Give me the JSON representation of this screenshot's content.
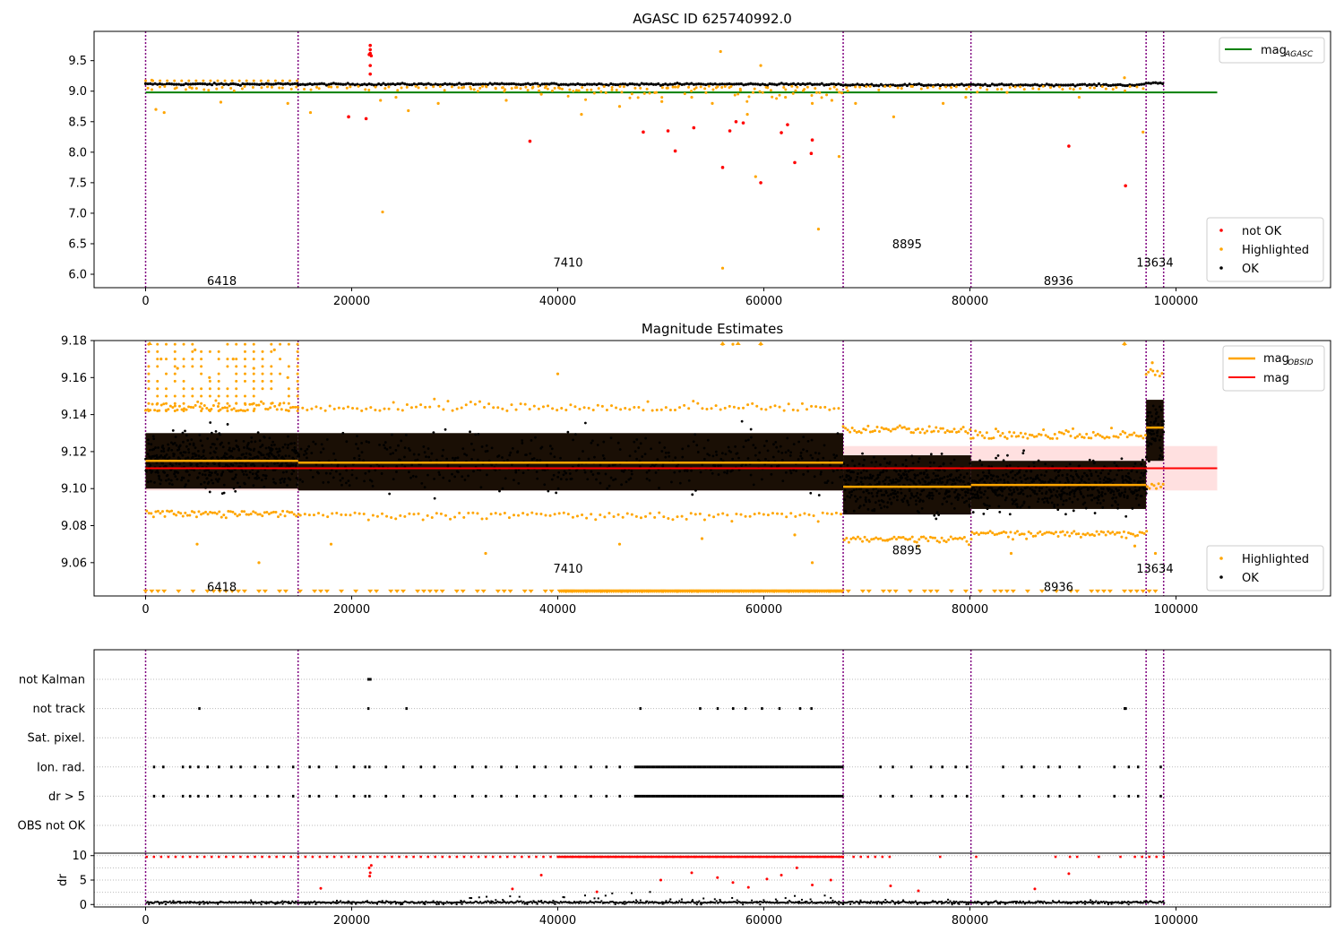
{
  "figure": {
    "title": "AGASC ID 625740992.0",
    "obsid_boundaries": [
      0,
      14800,
      67700,
      80100,
      97100,
      98800
    ],
    "obsids": [
      {
        "label": "6418",
        "x_center": 7400
      },
      {
        "label": "7410",
        "x_center": 41000
      },
      {
        "label": "8895",
        "x_center": 73900
      },
      {
        "label": "8936",
        "x_center": 88600
      },
      {
        "label": "13634",
        "x_center": 97950
      }
    ],
    "colors": {
      "ok": "#000000",
      "highlighted": "#ffa500",
      "not_ok": "#ff0000",
      "agasc_line": "#008000",
      "mean_line": "#ff0000",
      "obsid_line": "#ffa500",
      "boundary": "#800080",
      "band": "#ffe0e0"
    }
  },
  "chart_data": [
    {
      "id": "top",
      "type": "scatter",
      "title": "AGASC ID 625740992.0",
      "xlabel": "",
      "ylabel": "",
      "xlim": [
        -5000,
        115000
      ],
      "ylim": [
        5.78,
        9.98
      ],
      "xticks": [
        0,
        20000,
        40000,
        60000,
        80000,
        100000
      ],
      "yticks": [
        6.0,
        6.5,
        7.0,
        7.5,
        8.0,
        8.5,
        9.0,
        9.5
      ],
      "ytick_labels": [
        "6.0",
        "6.5",
        "7.0",
        "7.5",
        "8.0",
        "8.5",
        "9.0",
        "9.5"
      ],
      "legend_upper": {
        "placement": "top-right",
        "entries": [
          {
            "label": "mag",
            "sub": "AGASC"
          }
        ]
      },
      "legend_lower": {
        "placement": "bottom-right",
        "entries": [
          "not OK",
          "Highlighted",
          "OK"
        ]
      },
      "mag_agasc": 8.98,
      "obsid_label_y": [
        5.9,
        6.2,
        6.5,
        5.9,
        6.2
      ],
      "ok_band": [
        {
          "x0": 0,
          "x1": 14800,
          "y": 9.115
        },
        {
          "x0": 14800,
          "x1": 67700,
          "y": 9.114
        },
        {
          "x0": 67700,
          "x1": 80100,
          "y": 9.101
        },
        {
          "x0": 80100,
          "x1": 97100,
          "y": 9.102
        },
        {
          "x0": 97100,
          "x1": 98800,
          "y": 9.133
        }
      ],
      "highlighted_points": [
        [
          600,
          9.18
        ],
        [
          1000,
          8.7
        ],
        [
          1800,
          8.65
        ],
        [
          4500,
          9.05
        ],
        [
          7300,
          8.82
        ],
        [
          13800,
          8.8
        ],
        [
          16000,
          8.65
        ],
        [
          22800,
          8.85
        ],
        [
          23000,
          7.02
        ],
        [
          24300,
          8.9
        ],
        [
          25500,
          8.68
        ],
        [
          28400,
          8.8
        ],
        [
          35000,
          8.85
        ],
        [
          38400,
          8.95
        ],
        [
          42300,
          8.62
        ],
        [
          46000,
          8.75
        ],
        [
          50100,
          8.83
        ],
        [
          53000,
          8.9
        ],
        [
          55000,
          8.8
        ],
        [
          55800,
          9.65
        ],
        [
          56000,
          6.1
        ],
        [
          58400,
          8.62
        ],
        [
          59700,
          9.42
        ],
        [
          59200,
          7.6
        ],
        [
          62100,
          8.9
        ],
        [
          64700,
          8.8
        ],
        [
          65300,
          6.74
        ],
        [
          66600,
          8.85
        ],
        [
          67300,
          7.93
        ],
        [
          68900,
          8.8
        ],
        [
          72600,
          8.58
        ],
        [
          77400,
          8.8
        ],
        [
          79600,
          8.9
        ],
        [
          83600,
          8.98
        ],
        [
          90600,
          8.9
        ],
        [
          95000,
          9.22
        ],
        [
          96800,
          8.33
        ]
      ],
      "not_ok_points": [
        [
          19700,
          8.58
        ],
        [
          21400,
          8.55
        ],
        [
          21800,
          9.75
        ],
        [
          21800,
          9.68
        ],
        [
          21800,
          9.62
        ],
        [
          21900,
          9.58
        ],
        [
          21700,
          9.6
        ],
        [
          21800,
          9.42
        ],
        [
          21800,
          9.28
        ],
        [
          37300,
          8.18
        ],
        [
          48300,
          8.33
        ],
        [
          50700,
          8.35
        ],
        [
          51400,
          8.02
        ],
        [
          53200,
          8.4
        ],
        [
          56000,
          7.75
        ],
        [
          56700,
          8.35
        ],
        [
          57300,
          8.5
        ],
        [
          58000,
          8.48
        ],
        [
          59700,
          7.5
        ],
        [
          61700,
          8.32
        ],
        [
          62300,
          8.45
        ],
        [
          63000,
          7.83
        ],
        [
          64600,
          7.98
        ],
        [
          64700,
          8.2
        ],
        [
          89600,
          8.1
        ],
        [
          95100,
          7.45
        ]
      ]
    },
    {
      "id": "middle",
      "type": "scatter",
      "title": "Magnitude Estimates",
      "xlabel": "",
      "ylabel": "",
      "xlim": [
        -5000,
        115000
      ],
      "ylim": [
        9.042,
        9.18
      ],
      "xticks": [
        0,
        20000,
        40000,
        60000,
        80000,
        100000
      ],
      "yticks": [
        9.06,
        9.08,
        9.1,
        9.12,
        9.14,
        9.16,
        9.18
      ],
      "ytick_labels": [
        "9.06",
        "9.08",
        "9.10",
        "9.12",
        "9.14",
        "9.16",
        "9.18"
      ],
      "legend_upper": {
        "placement": "top-right",
        "entries": [
          {
            "label": "mag",
            "sub": "OBSID"
          },
          {
            "label": "mag",
            "sub": ""
          }
        ]
      },
      "legend_lower": {
        "placement": "bottom-right",
        "entries": [
          "Highlighted",
          "OK"
        ]
      },
      "mag_mean": 9.111,
      "mag_band": [
        9.099,
        9.123
      ],
      "obsid_label_y": [
        9.047,
        9.057,
        9.067,
        9.047,
        9.057
      ],
      "obsid_mean": [
        {
          "x0": 0,
          "x1": 14800,
          "y": 9.115
        },
        {
          "x0": 14800,
          "x1": 67700,
          "y": 9.114
        },
        {
          "x0": 67700,
          "x1": 80100,
          "y": 9.101
        },
        {
          "x0": 80100,
          "x1": 97100,
          "y": 9.102
        },
        {
          "x0": 97100,
          "x1": 98800,
          "y": 9.133
        }
      ],
      "ok_band": [
        {
          "x0": 0,
          "x1": 14800,
          "y0": 9.088,
          "y1": 9.142
        },
        {
          "x0": 14800,
          "x1": 67700,
          "y0": 9.087,
          "y1": 9.142
        },
        {
          "x0": 67700,
          "x1": 80100,
          "y0": 9.074,
          "y1": 9.13
        },
        {
          "x0": 80100,
          "x1": 97100,
          "y0": 9.077,
          "y1": 9.127
        },
        {
          "x0": 97100,
          "x1": 98800,
          "y0": 9.103,
          "y1": 9.16
        }
      ],
      "highlighted_range": {
        "x0": 0,
        "x1": 98800,
        "lower_edge": 9.043
      },
      "highlighted_points": [
        [
          1500,
          9.17
        ],
        [
          3100,
          9.165
        ],
        [
          4800,
          9.175
        ],
        [
          6200,
          9.16
        ],
        [
          8500,
          9.17
        ],
        [
          10500,
          9.165
        ],
        [
          12500,
          9.175
        ],
        [
          13800,
          9.16
        ],
        [
          40000,
          9.162
        ],
        [
          56000,
          9.178
        ],
        [
          57000,
          9.178
        ],
        [
          59700,
          9.178
        ],
        [
          95000,
          9.178
        ],
        [
          97700,
          9.168
        ],
        [
          5000,
          9.07
        ],
        [
          11000,
          9.06
        ],
        [
          18000,
          9.07
        ],
        [
          33000,
          9.065
        ],
        [
          46000,
          9.07
        ],
        [
          54000,
          9.073
        ],
        [
          63000,
          9.075
        ],
        [
          64700,
          9.06
        ],
        [
          72000,
          9.072
        ],
        [
          75000,
          9.069
        ],
        [
          84000,
          9.065
        ],
        [
          96000,
          9.069
        ],
        [
          98000,
          9.065
        ]
      ]
    },
    {
      "id": "flags",
      "type": "scatter",
      "title": "",
      "xlabel": "",
      "ylabel": "",
      "xlim": [
        -5000,
        115000
      ],
      "categories": [
        "not Kalman",
        "not track",
        "Sat. pixel.",
        "Ion. rad.",
        "dr > 5",
        "OBS not OK"
      ],
      "flag_points": {
        "not Kalman": [
          21600,
          21700,
          21800
        ],
        "not track": [
          5200,
          21600,
          25300,
          48000,
          53800,
          55500,
          57000,
          58200,
          59800,
          61500,
          63500,
          64600,
          95000,
          95100
        ],
        "Sat. pixel.": [],
        "Ion. rad.": [
          {
            "dense_from": 47500,
            "dense_to": 67700
          },
          {
            "sparse": [
              800,
              1700,
              3600,
              4300,
              5100,
              6000,
              7100,
              8300,
              9200,
              10600,
              11800,
              12900,
              14300,
              15900,
              16800,
              18500,
              20200,
              21300,
              21700,
              23300,
              25000,
              26700,
              28000,
              30000,
              31700,
              33000,
              34500,
              36000,
              37700,
              38800,
              40300,
              41700,
              43200,
              44700,
              46000,
              71300,
              72500,
              74300,
              76200,
              77300,
              78600,
              79700,
              83200,
              85000,
              86200,
              87600,
              88700,
              90600,
              94000,
              95400,
              96300,
              98500
            ]
          }
        ],
        "dr > 5": [
          {
            "dense_from": 47500,
            "dense_to": 67700
          },
          {
            "sparse": [
              800,
              1700,
              3600,
              4300,
              5100,
              6000,
              7100,
              8300,
              9200,
              10600,
              11800,
              12900,
              14300,
              15900,
              16800,
              18500,
              20200,
              21300,
              21700,
              23300,
              25000,
              26700,
              28000,
              30000,
              31700,
              33000,
              34500,
              36000,
              37700,
              38800,
              40300,
              41700,
              43200,
              44700,
              46000,
              71300,
              72500,
              74300,
              76200,
              77300,
              78600,
              79700,
              83200,
              85000,
              86200,
              87600,
              88700,
              90600,
              94000,
              95400,
              96300,
              98500
            ]
          }
        ],
        "OBS not OK": []
      }
    },
    {
      "id": "dr",
      "type": "scatter",
      "title": "",
      "xlabel": "",
      "ylabel": "dr",
      "xlim": [
        -5000,
        115000
      ],
      "ylim": [
        -0.5,
        10.5
      ],
      "xticks": [
        0,
        20000,
        40000,
        60000,
        80000,
        100000
      ],
      "yticks": [
        0,
        5,
        10
      ],
      "ytick_labels": [
        "0",
        "5",
        "10"
      ],
      "baseline": 0.3,
      "clipped_value": 9.8,
      "not_ok_points": [
        [
          21700,
          7.5
        ],
        [
          21800,
          6.5
        ],
        [
          21900,
          8.0
        ],
        [
          21750,
          5.8
        ],
        [
          35600,
          3.2
        ],
        [
          38400,
          6.0
        ],
        [
          43800,
          2.6
        ],
        [
          50000,
          5.0
        ],
        [
          53000,
          6.5
        ],
        [
          55500,
          5.5
        ],
        [
          57000,
          4.5
        ],
        [
          58500,
          3.5
        ],
        [
          60300,
          5.2
        ],
        [
          61700,
          6.0
        ],
        [
          63200,
          7.5
        ],
        [
          64700,
          4.0
        ],
        [
          66500,
          5.0
        ],
        [
          72300,
          3.8
        ],
        [
          75000,
          2.8
        ],
        [
          86300,
          3.2
        ],
        [
          89600,
          6.3
        ],
        [
          17000,
          3.3
        ]
      ],
      "ok_scatter_extent": {
        "x0": 0,
        "x1": 98800,
        "max_dr": 5
      }
    }
  ],
  "x_tick_labels": [
    "0",
    "20000",
    "40000",
    "60000",
    "80000",
    "100000"
  ]
}
